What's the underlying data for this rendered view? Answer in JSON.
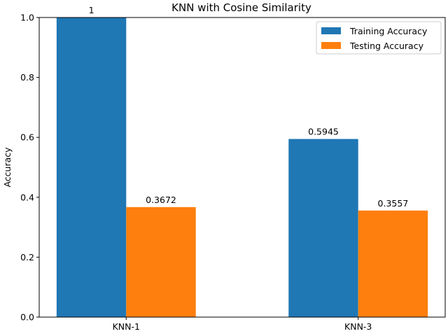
{
  "chart_data": {
    "type": "bar",
    "title": "KNN with Cosine Similarity",
    "xlabel": "",
    "ylabel": "Accuracy",
    "categories": [
      "KNN-1",
      "KNN-3"
    ],
    "series": [
      {
        "name": "Training Accuracy",
        "values": [
          1,
          0.5945
        ],
        "labels": [
          "1",
          "0.5945"
        ],
        "color": "#1f77b4"
      },
      {
        "name": "Testing Accuracy",
        "values": [
          0.3672,
          0.3557
        ],
        "labels": [
          "0.3672",
          "0.3557"
        ],
        "color": "#ff7f0e"
      }
    ],
    "ylim": [
      0,
      1.0
    ],
    "yticks": [
      "0.0",
      "0.2",
      "0.4",
      "0.6",
      "0.8",
      "1.0"
    ],
    "grid": false,
    "legend_position": "top-right"
  }
}
